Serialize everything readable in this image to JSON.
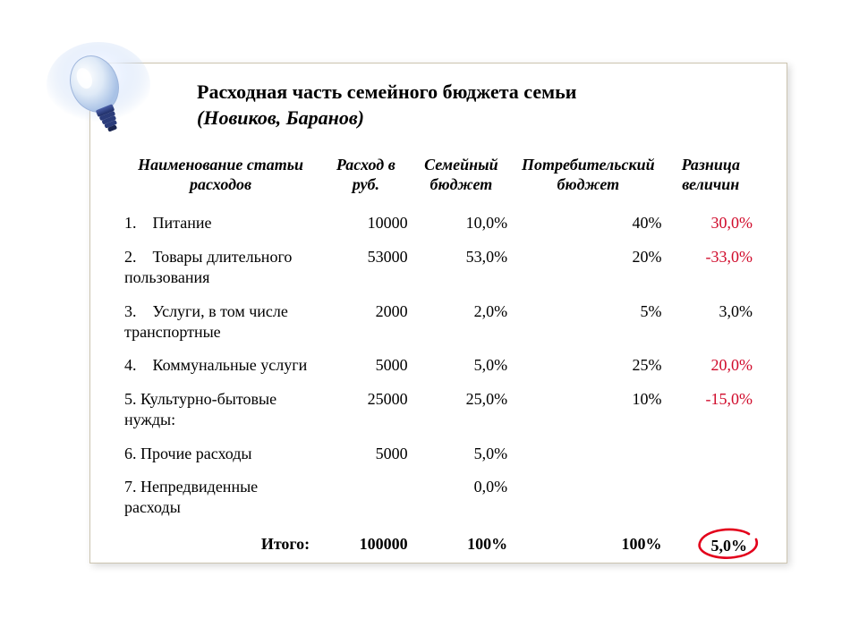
{
  "title": {
    "line1": "Расходная часть семейного бюджета семьи",
    "line2": "(Новиков, Баранов)"
  },
  "table": {
    "columns": {
      "name": "Наименование статьи расходов",
      "rub": "Расход в руб.",
      "family": "Семейный бюджет",
      "consumer": "Потребительский бюджет",
      "diff": "Разница величин"
    },
    "rows": [
      {
        "name": "1.    Питание",
        "rub": "10000",
        "family": "10,0%",
        "consumer": "40%",
        "diff": "30,0%",
        "diff_color": "#d00a2a"
      },
      {
        "name": "2.    Товары длительного пользования",
        "rub": "53000",
        "family": "53,0%",
        "consumer": "20%",
        "diff": "-33,0%",
        "diff_color": "#d00a2a"
      },
      {
        "name": "3.    Услуги, в том числе транспортные",
        "rub": "2000",
        "family": "2,0%",
        "consumer": "5%",
        "diff": "3,0%",
        "diff_color": "#000000"
      },
      {
        "name": "4.    Коммунальные услуги",
        "rub": "5000",
        "family": "5,0%",
        "consumer": "25%",
        "diff": "20,0%",
        "diff_color": "#d00a2a"
      },
      {
        "name": "5. Культурно-бытовые нужды:",
        "rub": "25000",
        "family": "25,0%",
        "consumer": "10%",
        "diff": "-15,0%",
        "diff_color": "#d00a2a"
      },
      {
        "name": "6. Прочие расходы",
        "rub": "5000",
        "family": "5,0%",
        "consumer": "",
        "diff": "",
        "diff_color": "#000000"
      },
      {
        "name": "7. Непредвиденные расходы",
        "rub": "",
        "family": "0,0%",
        "consumer": "",
        "diff": "",
        "diff_color": "#000000"
      }
    ],
    "total": {
      "label": "Итого:",
      "rub": "100000",
      "family": "100%",
      "consumer": "100%",
      "diff": "5,0%",
      "diff_circled": true,
      "circle_color": "#e3001b"
    }
  },
  "styling": {
    "panel_border": "#ccc4b0",
    "panel_bg": "#ffffff",
    "body_bg": "#ffffff",
    "font_family": "Times New Roman",
    "title_fontsize": 22,
    "table_fontsize": 18,
    "text_color": "#000000"
  },
  "decorative": {
    "lightbulb_icon": "lightbulb-icon"
  }
}
